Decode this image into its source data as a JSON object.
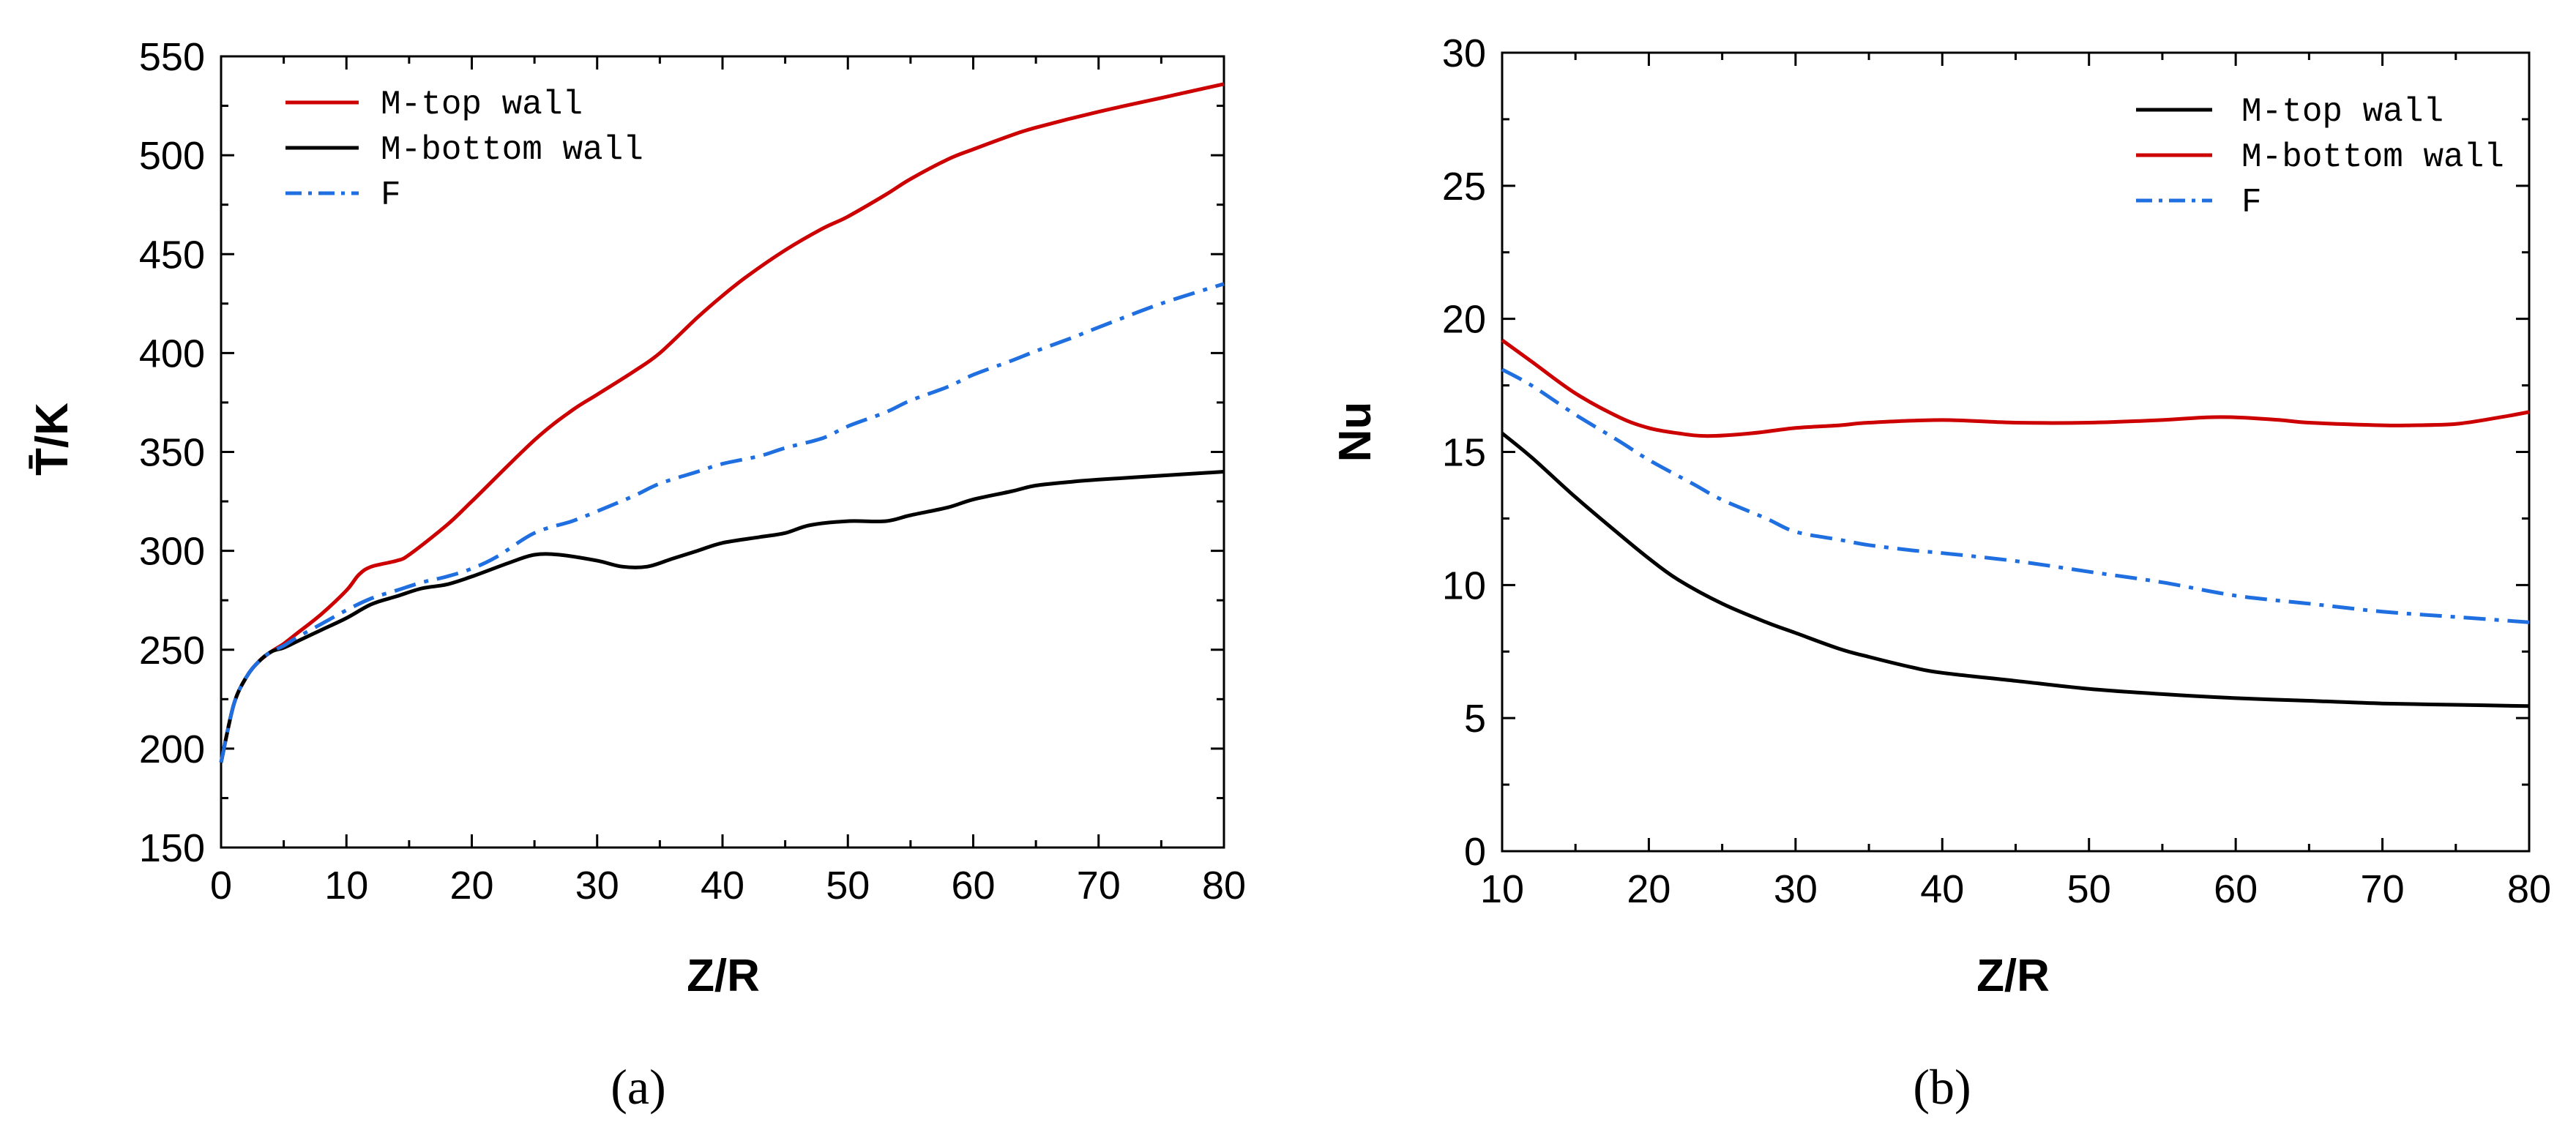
{
  "colors": {
    "red": "#cc0000",
    "black": "#000000",
    "blue": "#1f6fe0"
  },
  "chart_data": [
    {
      "type": "line",
      "panel": "a",
      "panel_label": "(a)",
      "panel_letter": "a",
      "xlabel": "Z/R",
      "ylabel": "T̄/K",
      "xlim": [
        0,
        80
      ],
      "ylim": [
        150,
        550
      ],
      "xticks": [
        0,
        10,
        20,
        30,
        40,
        50,
        60,
        70,
        80
      ],
      "yticks": [
        150,
        200,
        250,
        300,
        350,
        400,
        450,
        500,
        550
      ],
      "legend_position": "top-left",
      "series": [
        {
          "name": "M-top wall",
          "color": "red",
          "style": "solid",
          "x": [
            0,
            1,
            2,
            3,
            4,
            5,
            6,
            8,
            10,
            11,
            12,
            14,
            15,
            18,
            20,
            25,
            28,
            30,
            33,
            35,
            38,
            40,
            42,
            45,
            48,
            50,
            53,
            55,
            58,
            60,
            63,
            65,
            70,
            75,
            80
          ],
          "y": [
            193,
            222,
            236,
            244,
            249,
            253,
            258,
            268,
            280,
            288,
            292,
            295,
            298,
            313,
            325,
            356,
            371,
            379,
            391,
            400,
            418,
            429,
            439,
            452,
            463,
            469,
            480,
            488,
            498,
            503,
            510,
            514,
            522,
            529,
            536
          ]
        },
        {
          "name": "M-bottom wall",
          "color": "black",
          "style": "solid",
          "x": [
            0,
            1,
            2,
            3,
            4,
            5,
            6,
            8,
            10,
            12,
            14,
            16,
            18,
            20,
            23,
            25,
            27,
            30,
            32,
            34,
            36,
            38,
            40,
            43,
            45,
            47,
            50,
            53,
            55,
            58,
            60,
            63,
            65,
            68,
            70,
            75,
            80
          ],
          "y": [
            193,
            222,
            236,
            244,
            249,
            251,
            254,
            260,
            266,
            273,
            277,
            281,
            283,
            287,
            294,
            298,
            298,
            295,
            292,
            292,
            296,
            300,
            304,
            307,
            309,
            313,
            315,
            315,
            318,
            322,
            326,
            330,
            333,
            335,
            336,
            338,
            340
          ]
        },
        {
          "name": "F",
          "color": "blue",
          "style": "dashdot",
          "x": [
            0,
            1,
            2,
            3,
            4,
            5,
            6,
            8,
            10,
            12,
            14,
            16,
            18,
            20,
            22,
            25,
            28,
            30,
            33,
            35,
            38,
            40,
            43,
            45,
            48,
            50,
            53,
            55,
            58,
            60,
            63,
            65,
            68,
            70,
            75,
            80
          ],
          "y": [
            193,
            222,
            236,
            244,
            249,
            252,
            256,
            263,
            270,
            276,
            280,
            284,
            287,
            291,
            297,
            309,
            315,
            320,
            328,
            334,
            340,
            344,
            348,
            352,
            357,
            363,
            370,
            376,
            383,
            389,
            396,
            401,
            408,
            413,
            425,
            435
          ]
        }
      ]
    },
    {
      "type": "line",
      "panel": "b",
      "panel_label": "(b)",
      "panel_letter": "b",
      "xlabel": "Z/R",
      "ylabel": "Nu",
      "xlim": [
        10,
        80
      ],
      "ylim": [
        0,
        30
      ],
      "xticks": [
        10,
        20,
        30,
        40,
        50,
        60,
        70,
        80
      ],
      "yticks": [
        0,
        5,
        10,
        15,
        20,
        25,
        30
      ],
      "legend_position": "top-right",
      "series": [
        {
          "name": "M-top wall",
          "color": "black",
          "style": "solid",
          "x": [
            10,
            12,
            15,
            18,
            20,
            22,
            25,
            28,
            30,
            33,
            35,
            38,
            40,
            45,
            50,
            55,
            60,
            65,
            70,
            75,
            80
          ],
          "y": [
            15.7,
            14.8,
            13.3,
            11.9,
            11.0,
            10.2,
            9.3,
            8.6,
            8.2,
            7.6,
            7.3,
            6.9,
            6.7,
            6.4,
            6.1,
            5.9,
            5.75,
            5.65,
            5.55,
            5.5,
            5.45
          ]
        },
        {
          "name": "M-bottom wall",
          "color": "red",
          "style": "solid",
          "x": [
            10,
            12,
            15,
            18,
            20,
            22,
            24,
            27,
            30,
            33,
            35,
            40,
            45,
            50,
            55,
            58,
            60,
            63,
            65,
            70,
            72,
            75,
            78,
            80
          ],
          "y": [
            19.2,
            18.4,
            17.2,
            16.3,
            15.9,
            15.7,
            15.6,
            15.7,
            15.9,
            16.0,
            16.1,
            16.2,
            16.1,
            16.1,
            16.2,
            16.3,
            16.3,
            16.2,
            16.1,
            16.0,
            16.0,
            16.05,
            16.3,
            16.5
          ]
        },
        {
          "name": "F",
          "color": "blue",
          "style": "dashdot",
          "x": [
            10,
            12,
            15,
            18,
            20,
            23,
            25,
            28,
            30,
            33,
            35,
            38,
            40,
            45,
            50,
            55,
            60,
            65,
            70,
            75,
            80
          ],
          "y": [
            18.1,
            17.5,
            16.4,
            15.4,
            14.7,
            13.8,
            13.2,
            12.5,
            12.0,
            11.7,
            11.5,
            11.3,
            11.2,
            10.9,
            10.5,
            10.1,
            9.6,
            9.3,
            9.0,
            8.8,
            8.6
          ]
        }
      ]
    }
  ]
}
